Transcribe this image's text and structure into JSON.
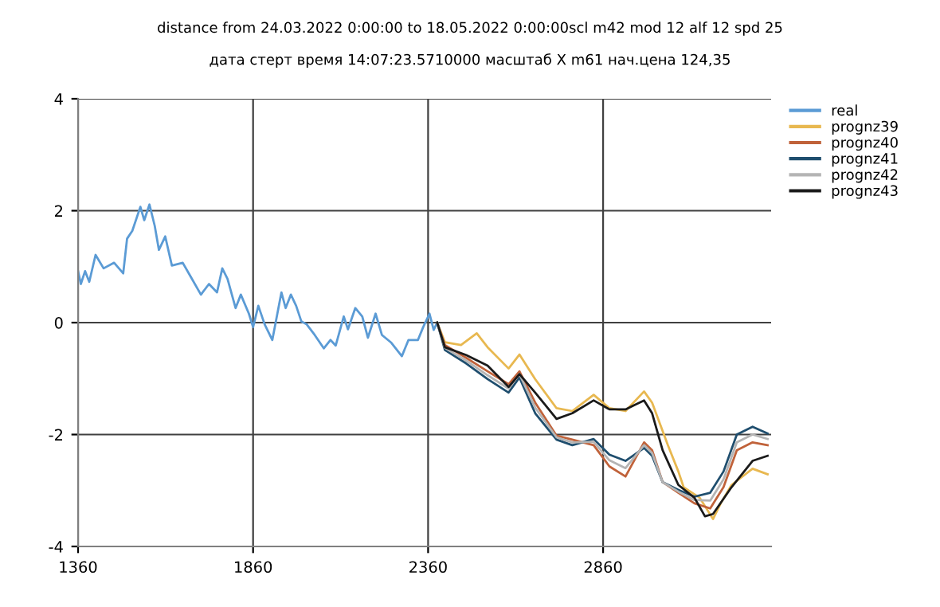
{
  "chart_data": {
    "type": "line",
    "title": "distance from 24.03.2022 0:00:00 to 18.05.2022 0:00:00scl m42 mod 12 alf 12 spd 25",
    "subtitle": "дата стерт время 14:07:23.5710000 масштаб X m61 нач.цена 124,35",
    "xlim": [
      1360,
      3340
    ],
    "xticks": [
      1360,
      1860,
      2360,
      2860
    ],
    "ylim": [
      -4,
      4
    ],
    "yticks": [
      -4,
      -2,
      0,
      2,
      4
    ],
    "grid": true,
    "legend": "top right",
    "marker": "none",
    "line_style": "solid",
    "series": [
      {
        "name": "real",
        "color": "#5b9bd5",
        "x": [
          1360,
          1368,
          1380,
          1392,
          1410,
          1433,
          1463,
          1489,
          1500,
          1515,
          1538,
          1549,
          1564,
          1579,
          1591,
          1609,
          1628,
          1659,
          1681,
          1711,
          1734,
          1757,
          1772,
          1787,
          1810,
          1825,
          1848,
          1860,
          1875,
          1893,
          1915,
          1941,
          1953,
          1968,
          1983,
          1998,
          2013,
          2036,
          2062,
          2081,
          2096,
          2119,
          2131,
          2152,
          2172,
          2188,
          2210,
          2228,
          2255,
          2285,
          2304,
          2331,
          2346,
          2364,
          2376,
          2386
        ],
        "values": [
          0.92,
          0.69,
          0.92,
          0.73,
          1.21,
          0.97,
          1.07,
          0.88,
          1.5,
          1.64,
          2.07,
          1.83,
          2.11,
          1.73,
          1.3,
          1.54,
          1.02,
          1.07,
          0.83,
          0.5,
          0.69,
          0.54,
          0.97,
          0.78,
          0.26,
          0.5,
          0.16,
          -0.08,
          0.3,
          -0.03,
          -0.31,
          0.54,
          0.26,
          0.5,
          0.3,
          0.02,
          -0.03,
          -0.22,
          -0.46,
          -0.31,
          -0.41,
          0.11,
          -0.12,
          0.26,
          0.11,
          -0.27,
          0.16,
          -0.22,
          -0.36,
          -0.6,
          -0.31,
          -0.31,
          -0.08,
          0.16,
          -0.13,
          0.0
        ]
      },
      {
        "name": "prognz39",
        "color": "#e8b850",
        "x": [
          2386,
          2408,
          2454,
          2499,
          2530,
          2590,
          2621,
          2666,
          2727,
          2772,
          2833,
          2878,
          2924,
          2977,
          3000,
          3045,
          3075,
          3090,
          3136,
          3174,
          3196,
          3227,
          3287,
          3330
        ],
        "values": [
          0,
          -0.35,
          -0.4,
          -0.19,
          -0.44,
          -0.82,
          -0.57,
          -1.01,
          -1.53,
          -1.58,
          -1.29,
          -1.53,
          -1.58,
          -1.23,
          -1.43,
          -2.19,
          -2.66,
          -2.94,
          -3.13,
          -3.51,
          -3.23,
          -2.9,
          -2.61,
          -2.71
        ]
      },
      {
        "name": "prognz40",
        "color": "#c0623a",
        "x": [
          2386,
          2408,
          2469,
          2530,
          2590,
          2621,
          2666,
          2727,
          2772,
          2833,
          2878,
          2924,
          2977,
          3000,
          3030,
          3075,
          3121,
          3166,
          3204,
          3242,
          3287,
          3330
        ],
        "values": [
          0,
          -0.4,
          -0.63,
          -0.87,
          -1.1,
          -0.87,
          -1.43,
          -2.02,
          -2.09,
          -2.19,
          -2.57,
          -2.75,
          -2.14,
          -2.28,
          -2.85,
          -3.04,
          -3.23,
          -3.32,
          -2.94,
          -2.28,
          -2.14,
          -2.19
        ]
      },
      {
        "name": "prognz41",
        "color": "#1f4e6e",
        "x": [
          2386,
          2408,
          2469,
          2530,
          2590,
          2621,
          2666,
          2727,
          2772,
          2833,
          2878,
          2924,
          2977,
          3000,
          3030,
          3075,
          3121,
          3166,
          3204,
          3242,
          3287,
          3330
        ],
        "values": [
          0,
          -0.49,
          -0.73,
          -1.01,
          -1.25,
          -0.98,
          -1.62,
          -2.09,
          -2.19,
          -2.08,
          -2.36,
          -2.47,
          -2.24,
          -2.38,
          -2.85,
          -2.99,
          -3.11,
          -3.04,
          -2.66,
          -2.0,
          -1.86,
          -1.98
        ]
      },
      {
        "name": "prognz42",
        "color": "#b4b4b4",
        "x": [
          2386,
          2408,
          2469,
          2530,
          2590,
          2621,
          2666,
          2727,
          2772,
          2833,
          2878,
          2924,
          2977,
          3000,
          3030,
          3075,
          3121,
          3166,
          3204,
          3242,
          3287,
          3330
        ],
        "values": [
          0,
          -0.45,
          -0.68,
          -0.94,
          -1.18,
          -0.92,
          -1.52,
          -2.05,
          -2.14,
          -2.13,
          -2.46,
          -2.6,
          -2.19,
          -2.33,
          -2.85,
          -3.02,
          -3.17,
          -3.18,
          -2.8,
          -2.14,
          -2.0,
          -2.08
        ]
      },
      {
        "name": "prognz43",
        "color": "#1a1a1a",
        "x": [
          2386,
          2408,
          2469,
          2530,
          2590,
          2621,
          2666,
          2727,
          2772,
          2833,
          2878,
          2924,
          2977,
          3000,
          3030,
          3075,
          3121,
          3151,
          3174,
          3227,
          3287,
          3330
        ],
        "values": [
          0,
          -0.44,
          -0.58,
          -0.77,
          -1.15,
          -0.92,
          -1.25,
          -1.72,
          -1.62,
          -1.39,
          -1.55,
          -1.55,
          -1.39,
          -1.62,
          -2.28,
          -2.9,
          -3.13,
          -3.46,
          -3.42,
          -2.94,
          -2.47,
          -2.38
        ]
      }
    ]
  }
}
